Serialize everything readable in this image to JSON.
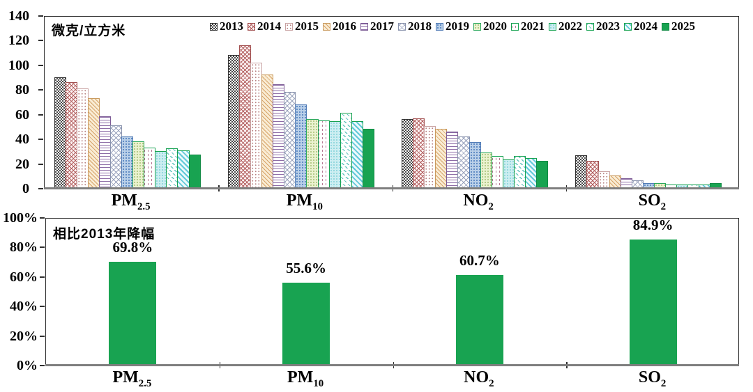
{
  "accent_green": "#18a351",
  "axis_line_color": "#7f7f7f",
  "chart_data": [
    {
      "type": "bar",
      "title": "微克/立方米",
      "legend_position": "top-inside",
      "grid": false,
      "ylim": [
        0,
        140
      ],
      "y_tick_labels": [
        "0",
        "20",
        "40",
        "60",
        "80",
        "100",
        "120",
        "140"
      ],
      "categories": [
        {
          "text": "PM2.5",
          "main": "PM",
          "sub": "2.5"
        },
        {
          "text": "PM10",
          "main": "PM",
          "sub": "10"
        },
        {
          "text": "NO2",
          "main": "NO",
          "sub": "2"
        },
        {
          "text": "SO2",
          "main": "SO",
          "sub": "2"
        }
      ],
      "series": [
        {
          "name": "2013",
          "pattern": "dense-check-dark",
          "values": [
            89.5,
            108.1,
            56.0,
            26.5
          ]
        },
        {
          "name": "2014",
          "pattern": "crosshatch-rose",
          "values": [
            85.9,
            115.8,
            56.7,
            21.8
          ]
        },
        {
          "name": "2015",
          "pattern": "dots-rose",
          "values": [
            80.6,
            101.5,
            50.0,
            13.5
          ]
        },
        {
          "name": "2016",
          "pattern": "diagonal-tan",
          "values": [
            73.0,
            92.0,
            48.0,
            10.0
          ]
        },
        {
          "name": "2017",
          "pattern": "hlines-purple",
          "values": [
            58.0,
            84.0,
            46.0,
            8.0
          ]
        },
        {
          "name": "2018",
          "pattern": "crosshatch-slate",
          "values": [
            51.0,
            78.0,
            42.0,
            6.0
          ]
        },
        {
          "name": "2019",
          "pattern": "dots-blue",
          "values": [
            42.0,
            68.0,
            37.0,
            4.0
          ]
        },
        {
          "name": "2020",
          "pattern": "dots-lightgreen",
          "values": [
            38.0,
            56.0,
            29.0,
            4.0
          ]
        },
        {
          "name": "2021",
          "pattern": "vdash-rose-green-border",
          "values": [
            33.0,
            55.0,
            26.0,
            3.0
          ]
        },
        {
          "name": "2022",
          "pattern": "dots-cyan-green-border",
          "values": [
            30.0,
            54.0,
            23.0,
            3.0
          ]
        },
        {
          "name": "2023",
          "pattern": "diagdash-teal-green-border",
          "values": [
            32.0,
            61.0,
            26.0,
            3.0
          ]
        },
        {
          "name": "2024",
          "pattern": "diagonal-cyan-green-border",
          "values": [
            30.5,
            54.0,
            24.0,
            3.0
          ]
        },
        {
          "name": "2025",
          "pattern": "solid-green",
          "values": [
            27.0,
            48.0,
            22.0,
            4.0
          ]
        }
      ]
    },
    {
      "type": "bar",
      "title": "相比2013年降幅",
      "grid": false,
      "ylim": [
        0,
        100
      ],
      "y_tick_labels": [
        "0%",
        "20%",
        "40%",
        "60%",
        "80%",
        "100%"
      ],
      "categories": [
        {
          "text": "PM2.5",
          "main": "PM",
          "sub": "2.5"
        },
        {
          "text": "PM10",
          "main": "PM",
          "sub": "10"
        },
        {
          "text": "NO2",
          "main": "NO",
          "sub": "2"
        },
        {
          "text": "SO2",
          "main": "SO",
          "sub": "2"
        }
      ],
      "values": [
        69.8,
        55.6,
        60.7,
        84.9
      ],
      "value_labels": [
        "69.8%",
        "55.6%",
        "60.7%",
        "84.9%"
      ],
      "bar_color": "#18a351"
    }
  ]
}
